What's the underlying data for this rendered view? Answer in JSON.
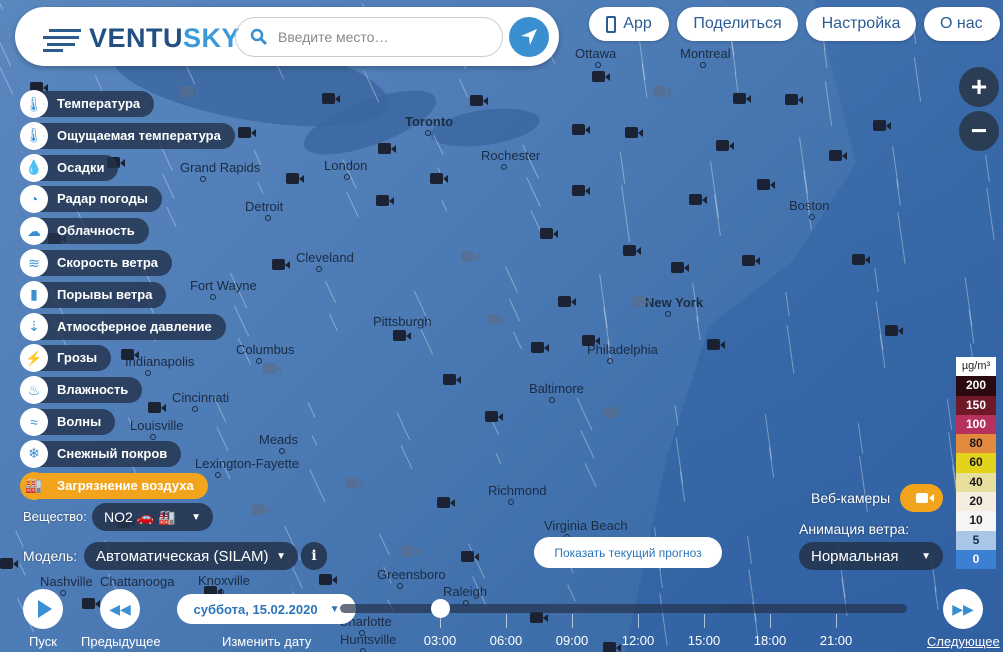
{
  "header": {
    "logo_text_a": "VENTU",
    "logo_text_b": "SKY",
    "search_placeholder": "Введите место…"
  },
  "nav": {
    "app": "App",
    "share": "Поделиться",
    "settings": "Настройка",
    "about": "О нас"
  },
  "zoom": {
    "in": "+",
    "out": "−"
  },
  "layers": [
    {
      "label": "Температура",
      "icon": "thermometer-icon",
      "glyph": "🌡"
    },
    {
      "label": "Ощущаемая температура",
      "icon": "feels-like-icon",
      "glyph": "🌡"
    },
    {
      "label": "Осадки",
      "icon": "droplet-icon",
      "glyph": "💧"
    },
    {
      "label": "Радар погоды",
      "icon": "radar-icon",
      "glyph": "◔"
    },
    {
      "label": "Облачность",
      "icon": "cloud-icon",
      "glyph": "☁"
    },
    {
      "label": "Скорость ветра",
      "icon": "wind-icon",
      "glyph": "≋"
    },
    {
      "label": "Порывы ветра",
      "icon": "gusts-icon",
      "glyph": "▮"
    },
    {
      "label": "Атмосферное давление",
      "icon": "pressure-icon",
      "glyph": "⇣"
    },
    {
      "label": "Грозы",
      "icon": "lightning-icon",
      "glyph": "⚡"
    },
    {
      "label": "Влажность",
      "icon": "humidity-icon",
      "glyph": "♨"
    },
    {
      "label": "Волны",
      "icon": "waves-icon",
      "glyph": "≈"
    },
    {
      "label": "Снежный покров",
      "icon": "snowflake-icon",
      "glyph": "❄"
    },
    {
      "label": "Загрязнение воздуха",
      "icon": "factory-icon",
      "glyph": "🏭"
    }
  ],
  "substance": {
    "label": "Вещество:",
    "value": "NO2 🚗 🏭"
  },
  "model": {
    "label": "Модель:",
    "value": "Автоматическая (SILAM)",
    "info": "i"
  },
  "forecast_button": "Показать текущий прогноз",
  "webcams_label": "Веб-камеры",
  "wind_animation": {
    "label": "Анимация ветра:",
    "value": "Нормальная"
  },
  "legend": {
    "unit": "µg/m³",
    "items": [
      {
        "value": "200",
        "bg": "#2a0a0e",
        "fg": "#ffffff"
      },
      {
        "value": "150",
        "bg": "#6e1828",
        "fg": "#ffffff"
      },
      {
        "value": "100",
        "bg": "#b7315e",
        "fg": "#ffffff"
      },
      {
        "value": "80",
        "bg": "#e48a3e",
        "fg": "#1a1a1a"
      },
      {
        "value": "60",
        "bg": "#e3d21c",
        "fg": "#1a1a1a"
      },
      {
        "value": "40",
        "bg": "#e8df9c",
        "fg": "#1a1a1a"
      },
      {
        "value": "20",
        "bg": "#f3eee0",
        "fg": "#1a1a1a"
      },
      {
        "value": "10",
        "bg": "#f5f5f5",
        "fg": "#1a1a1a"
      },
      {
        "value": "5",
        "bg": "#a9c5e8",
        "fg": "#1a2a4a"
      },
      {
        "value": "0",
        "bg": "#3d7fd0",
        "fg": "#ffffff"
      }
    ]
  },
  "timeline": {
    "play": "Пуск",
    "previous": "Предыдущее",
    "change_date": "Изменить дату",
    "date": "суббота, 15.02.2020",
    "next": "Следующее",
    "times": [
      "03:00",
      "06:00",
      "09:00",
      "12:00",
      "15:00",
      "18:00",
      "21:00"
    ],
    "position": 0.16
  },
  "cities": [
    "Ottawa",
    "Montreal",
    "Toronto",
    "Rochester",
    "London",
    "Grand Rapids",
    "Detroit",
    "Cleveland",
    "Boston",
    "Fort Wayne",
    "Pittsburgh",
    "New York",
    "Columbus",
    "Philadelphia",
    "Indianapolis",
    "Baltimore",
    "Cincinnati",
    "Meads",
    "Louisville",
    "Lexington-Fayette",
    "Richmond",
    "Virginia Beach",
    "Nashville",
    "Knoxville",
    "Greensboro",
    "Raleigh",
    "Charlotte",
    "Chattanooga",
    "Huntsville"
  ],
  "colors": {
    "accent": "#f2a51c",
    "brand": "#2b5d94",
    "panel": "#23324b"
  }
}
